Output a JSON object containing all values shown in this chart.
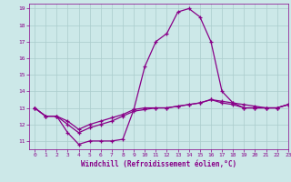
{
  "xlabel": "Windchill (Refroidissement éolien,°C)",
  "ylabel": "",
  "xlim": [
    -0.5,
    23
  ],
  "ylim": [
    10.5,
    19.3
  ],
  "yticks": [
    11,
    12,
    13,
    14,
    15,
    16,
    17,
    18,
    19
  ],
  "xticks": [
    0,
    1,
    2,
    3,
    4,
    5,
    6,
    7,
    8,
    9,
    10,
    11,
    12,
    13,
    14,
    15,
    16,
    17,
    18,
    19,
    20,
    21,
    22,
    23
  ],
  "background_color": "#cce8e8",
  "grid_color": "#aacccc",
  "line_color": "#880088",
  "curve1_x": [
    0,
    1,
    2,
    3,
    4,
    5,
    6,
    7,
    8,
    9,
    10,
    11,
    12,
    13,
    14,
    15,
    16,
    17,
    18,
    19,
    20,
    21,
    22,
    23
  ],
  "curve1_y": [
    13.0,
    12.5,
    12.5,
    11.5,
    10.8,
    11.0,
    11.0,
    11.0,
    11.1,
    12.9,
    15.5,
    17.0,
    17.5,
    18.8,
    19.0,
    18.5,
    17.0,
    14.0,
    13.3,
    13.0,
    13.0,
    13.0,
    13.0,
    13.2
  ],
  "curve2_x": [
    0,
    1,
    2,
    3,
    4,
    5,
    6,
    7,
    8,
    9,
    10,
    11,
    12,
    13,
    14,
    15,
    16,
    17,
    18,
    19,
    20,
    21,
    22,
    23
  ],
  "curve2_y": [
    13.0,
    12.5,
    12.5,
    12.0,
    11.5,
    11.8,
    12.0,
    12.2,
    12.5,
    12.8,
    12.9,
    13.0,
    13.0,
    13.1,
    13.2,
    13.3,
    13.5,
    13.3,
    13.2,
    13.0,
    13.0,
    13.0,
    13.0,
    13.2
  ],
  "curve3_x": [
    0,
    1,
    2,
    3,
    4,
    5,
    6,
    7,
    8,
    9,
    10,
    11,
    12,
    13,
    14,
    15,
    16,
    17,
    18,
    19,
    20,
    21,
    22,
    23
  ],
  "curve3_y": [
    13.0,
    12.5,
    12.5,
    12.2,
    11.7,
    12.0,
    12.2,
    12.4,
    12.6,
    12.9,
    13.0,
    13.0,
    13.0,
    13.1,
    13.2,
    13.3,
    13.5,
    13.4,
    13.3,
    13.2,
    13.1,
    13.0,
    13.0,
    13.2
  ]
}
